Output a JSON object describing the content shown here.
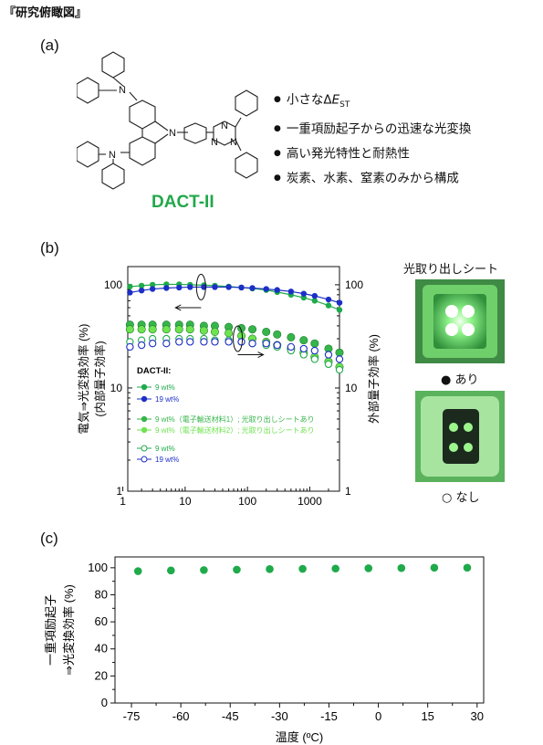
{
  "header": {
    "title": "『研究俯瞰図』"
  },
  "panel_a": {
    "label": "(a)",
    "molecule_name": "DACT-II",
    "atom_labels": [
      "N",
      "N",
      "N",
      "N",
      "N",
      "N"
    ],
    "bullets": [
      {
        "pre": "小さなΔ",
        "italic": "E",
        "sub": "ST"
      },
      {
        "pre": "一重項励起子からの迅速な光変換"
      },
      {
        "pre": "高い発光特性と耐熱性"
      },
      {
        "pre": "炭素、水素、窒素のみから構成"
      }
    ],
    "bullet_symbol": "●"
  },
  "panel_b": {
    "label": "(b)",
    "photo_title": "光取り出しシート",
    "photo_on_caption": "● あり",
    "photo_off_caption": "○ なし"
  },
  "panel_c": {
    "label": "(c)"
  },
  "chart_data": [
    {
      "type": "scatter",
      "xscale": "log",
      "xlim": [
        1.2,
        3000
      ],
      "ylim": [
        1,
        150
      ],
      "ylim_right": [
        1,
        150
      ],
      "yscale": "log",
      "ylabel": "電気⇒光変換効率 (%)",
      "ylabel2": "(内部量子効率)",
      "ylabel_right": "外部量子効率 (%)",
      "x_ticks": [
        "1",
        "10",
        "100",
        "1000"
      ],
      "y_ticks": [
        "1",
        "10",
        "100"
      ],
      "y_ticks_right": [
        "1",
        "10",
        "100"
      ],
      "legend_title": "DACT-II:",
      "legend": [
        "9 wt%",
        "19 wt%",
        "9 wt%（電子輸送材料1）; 光取り出しシートあり",
        "9 wt%（電子輸送材料2）; 光取り出しシートあり",
        "9 wt%",
        "19 wt%"
      ],
      "legend_placement": "bottom-left",
      "series": [
        {
          "name": "9 wt%",
          "axis": "left",
          "style": "filled-line",
          "color": "#1faa4b",
          "x": [
            1.3,
            2,
            3,
            5,
            8,
            12,
            20,
            30,
            50,
            80,
            120,
            200,
            300,
            500,
            800,
            1200,
            2000,
            3000
          ],
          "y": [
            96,
            98,
            100,
            101,
            101,
            100,
            99,
            98,
            96,
            94,
            92,
            89,
            85,
            80,
            75,
            70,
            63,
            57
          ]
        },
        {
          "name": "19 wt%",
          "axis": "left",
          "style": "filled-line",
          "color": "#1c2fc6",
          "x": [
            1.3,
            2,
            3,
            5,
            8,
            12,
            20,
            30,
            50,
            80,
            120,
            200,
            300,
            500,
            800,
            1200,
            2000,
            3000
          ],
          "y": [
            84,
            88,
            91,
            93,
            94,
            95,
            95,
            95,
            95,
            94,
            93,
            91,
            89,
            86,
            82,
            78,
            72,
            67
          ]
        },
        {
          "name": "9 wt%（電子輸送材料1）; 光取り出しシートあり",
          "axis": "right",
          "style": "ball",
          "color": "#36b54a",
          "x": [
            1.3,
            2,
            3,
            5,
            8,
            12,
            20,
            30,
            50,
            80,
            120,
            200,
            300,
            500,
            800,
            1200,
            2000,
            3000
          ],
          "y": [
            41,
            41,
            41,
            41,
            41,
            41,
            40,
            40,
            39,
            38,
            37,
            35,
            33,
            31,
            29,
            27,
            24,
            22
          ]
        },
        {
          "name": "9 wt%（電子輸送材料2）; 光取り出しシートあり",
          "axis": "right",
          "style": "ball",
          "color": "#6ee34e",
          "x": [
            1.3,
            2,
            3,
            5,
            8,
            12,
            20,
            30,
            50,
            80,
            120,
            200,
            300,
            500,
            800,
            1200,
            2000,
            3000
          ],
          "y": [
            37,
            37,
            37,
            37,
            37,
            37,
            36,
            35,
            34,
            32,
            30,
            28,
            26,
            24,
            22,
            20,
            18,
            16
          ]
        },
        {
          "name": "9 wt%",
          "axis": "right",
          "style": "open",
          "color": "#1faa4b",
          "x": [
            1.3,
            2,
            3,
            5,
            8,
            12,
            20,
            30,
            50,
            80,
            120,
            200,
            300,
            500,
            800,
            1200,
            2000,
            3000
          ],
          "y": [
            28,
            29,
            30,
            30,
            30,
            30,
            30,
            29,
            29,
            28,
            27,
            26,
            25,
            23,
            21,
            19,
            17,
            15
          ]
        },
        {
          "name": "19 wt%",
          "axis": "right",
          "style": "open",
          "color": "#1c2fc6",
          "x": [
            1.3,
            2,
            3,
            5,
            8,
            12,
            20,
            30,
            50,
            80,
            120,
            200,
            300,
            500,
            800,
            1200,
            2000,
            3000
          ],
          "y": [
            25,
            26,
            27,
            27,
            28,
            28,
            28,
            28,
            28,
            28,
            27,
            27,
            26,
            25,
            24,
            23,
            21,
            19
          ]
        }
      ]
    },
    {
      "type": "scatter",
      "xlabel": "温度 (ºC)",
      "ylabel": "一重項励起子",
      "ylabel2": "⇒光変換効率 (%)",
      "xlim": [
        -80,
        32
      ],
      "ylim": [
        0,
        108
      ],
      "x_ticks": [
        "-75",
        "-60",
        "-45",
        "-30",
        "-15",
        "0",
        "15",
        "30"
      ],
      "x_tick_values": [
        -75,
        -60,
        -45,
        -30,
        -15,
        0,
        15,
        30
      ],
      "y_ticks": [
        "0",
        "20",
        "40",
        "60",
        "80",
        "100"
      ],
      "y_tick_values": [
        0,
        20,
        40,
        60,
        80,
        100
      ],
      "series": [
        {
          "color": "#1faa4b",
          "x": [
            -73,
            -63,
            -53,
            -43,
            -33,
            -23,
            -13,
            -3,
            7,
            17,
            27
          ],
          "y": [
            97.5,
            98,
            98.3,
            98.6,
            99,
            99.2,
            99.4,
            99.6,
            99.8,
            100,
            100
          ]
        }
      ]
    }
  ]
}
